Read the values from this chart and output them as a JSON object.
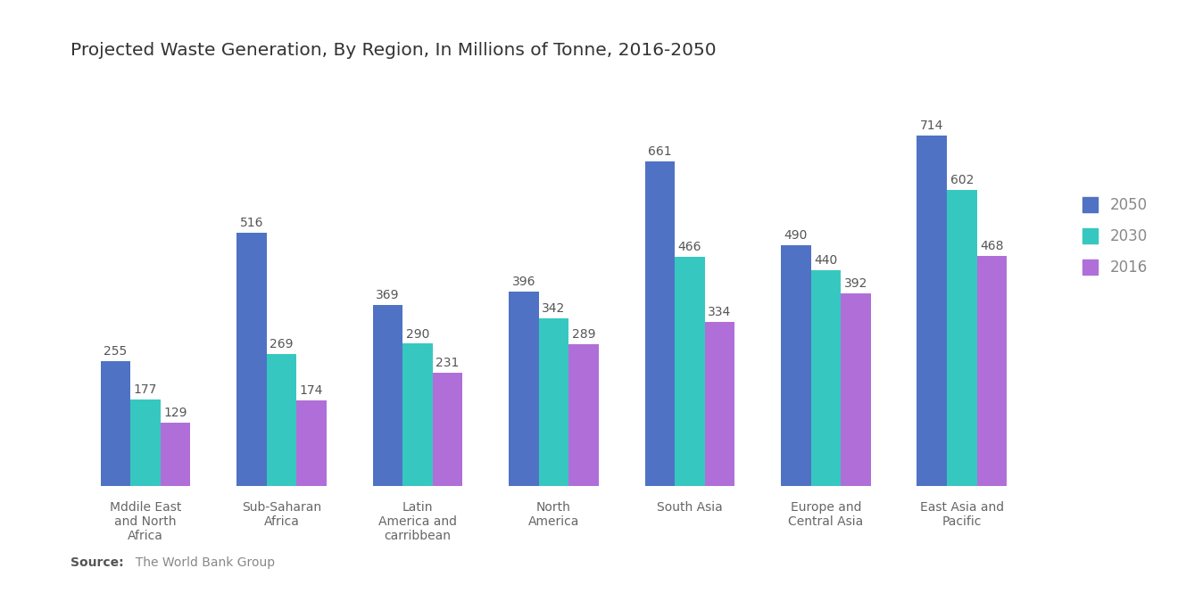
{
  "title": "Projected Waste Generation, By Region, In Millions of Tonne, 2016-2050",
  "categories": [
    "Mddile East\nand North\nAfrica",
    "Sub-Saharan\nAfrica",
    "Latin\nAmerica and\ncarribbean",
    "North\nAmerica",
    "South Asia",
    "Europe and\nCentral Asia",
    "East Asia and\nPacific"
  ],
  "series": {
    "2050": [
      255,
      516,
      369,
      396,
      661,
      490,
      714
    ],
    "2030": [
      177,
      269,
      290,
      342,
      466,
      440,
      602
    ],
    "2016": [
      129,
      174,
      231,
      289,
      334,
      392,
      468
    ]
  },
  "colors": {
    "2050": "#4F72C4",
    "2030": "#36C8C0",
    "2016": "#B06FD8"
  },
  "legend_labels": [
    "2050",
    "2030",
    "2016"
  ],
  "source_bold": "Source:",
  "source_rest": "  The World Bank Group",
  "background_color": "#ffffff",
  "bar_width": 0.22,
  "ylim": [
    0,
    820
  ],
  "title_fontsize": 14.5,
  "label_fontsize": 10,
  "value_fontsize": 10,
  "legend_fontsize": 12,
  "value_color": "#555555",
  "tick_color": "#666666"
}
